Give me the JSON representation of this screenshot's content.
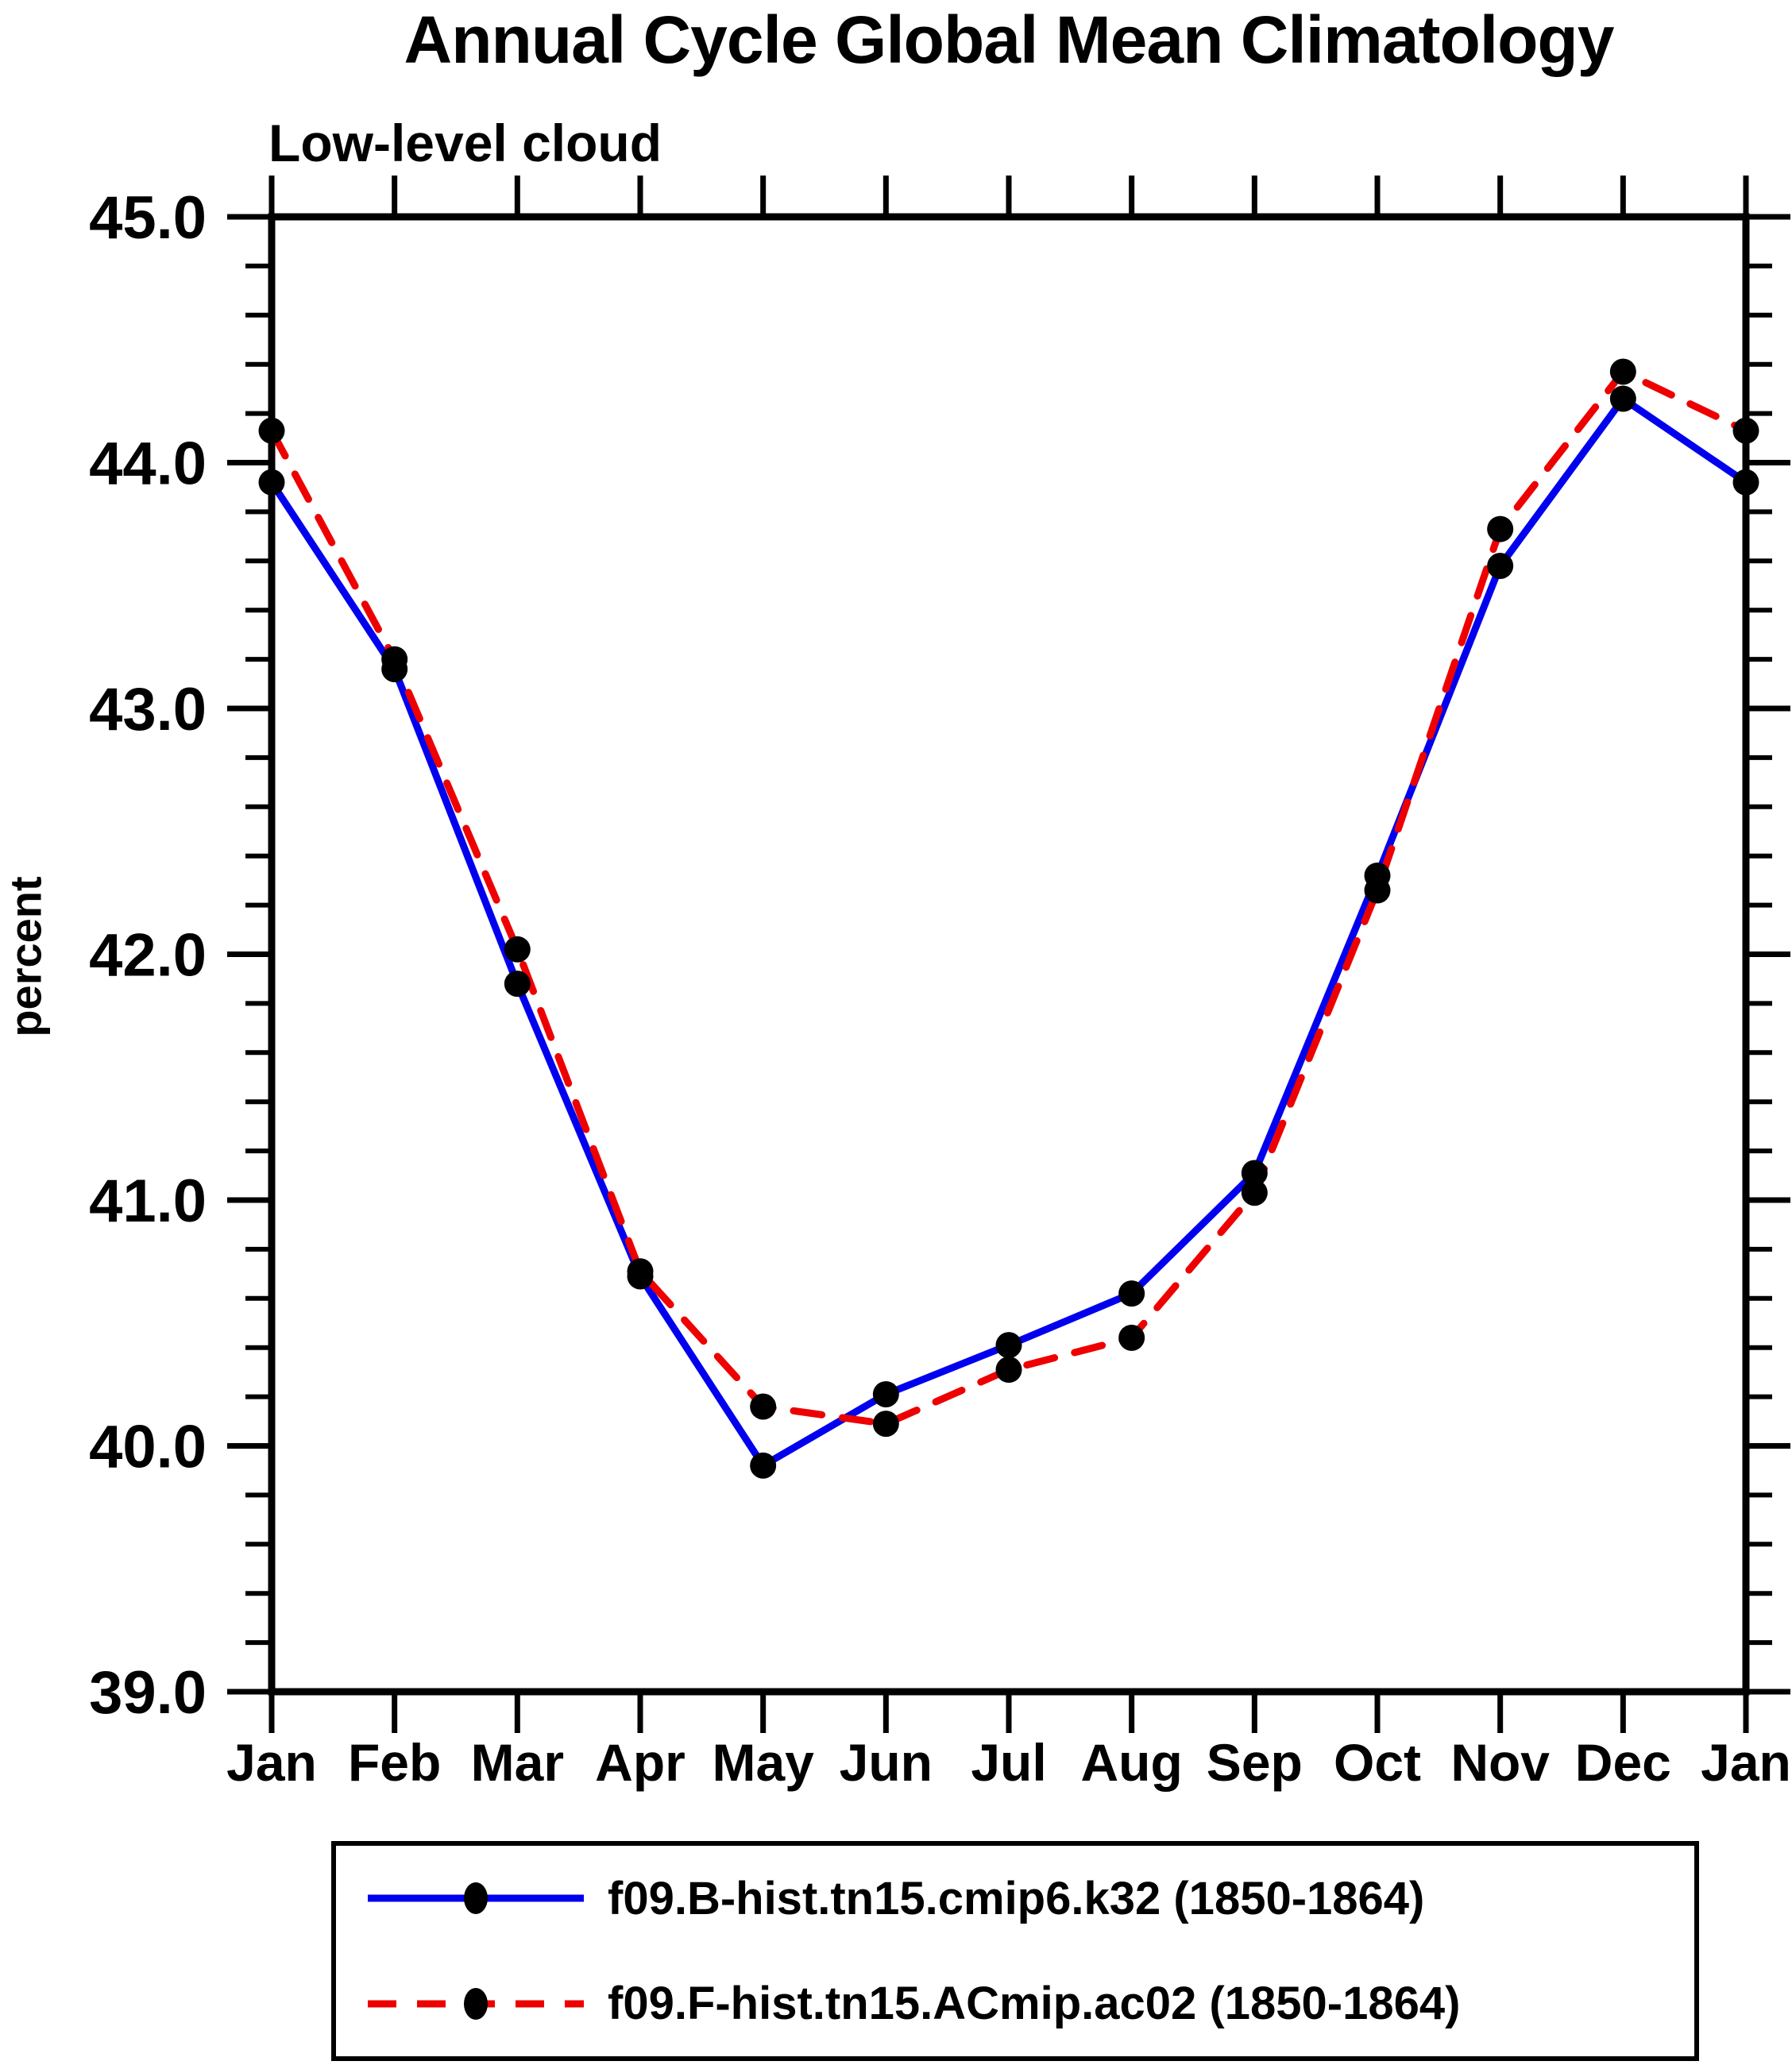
{
  "chart_data": {
    "type": "line",
    "title": "Annual Cycle Global Mean Climatology",
    "subtitle": "Low-level cloud",
    "xlabel": "",
    "ylabel": "percent",
    "categories": [
      "Jan",
      "Feb",
      "Mar",
      "Apr",
      "May",
      "Jun",
      "Jul",
      "Aug",
      "Sep",
      "Oct",
      "Nov",
      "Dec",
      "Jan"
    ],
    "series": [
      {
        "name": "f09.B-hist.tn15.cmip6.k32 (1850-1864)",
        "color": "#0000ee",
        "style": "solid",
        "marker": "black-filled-circle",
        "values": [
          43.92,
          43.16,
          41.88,
          40.69,
          39.92,
          40.21,
          40.41,
          40.62,
          41.11,
          42.32,
          43.58,
          44.26,
          43.92
        ]
      },
      {
        "name": "f09.F-hist.tn15.ACmip.ac02 (1850-1864)",
        "color": "#ee0000",
        "style": "dashed",
        "marker": "black-filled-circle",
        "values": [
          44.13,
          43.2,
          42.02,
          40.71,
          40.16,
          40.09,
          40.31,
          40.44,
          41.03,
          42.26,
          43.73,
          44.37,
          44.13
        ]
      }
    ],
    "ylim": [
      39.0,
      45.0
    ],
    "y_major_ticks": [
      "45.0",
      "44.0",
      "43.0",
      "42.0",
      "41.0",
      "40.0",
      "39.0"
    ],
    "y_minor_step": 0.2,
    "grid": false,
    "legend_position": "bottom",
    "axis_color": "#000000",
    "marker_color": "#000000"
  }
}
